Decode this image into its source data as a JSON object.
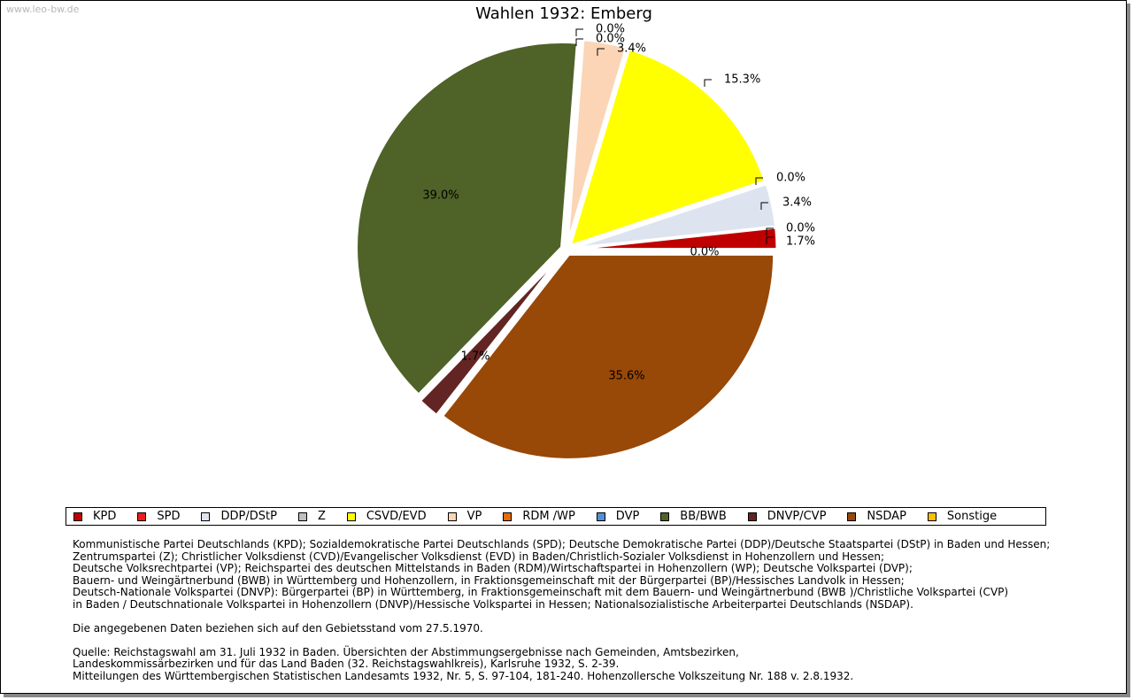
{
  "watermark": "www.leo-bw.de",
  "chart_data": {
    "type": "pie",
    "title": "Wahlen 1932: Emberg",
    "slices": [
      {
        "name": "KPD",
        "value": 1.7,
        "label": "1.7%",
        "color": "#c00000"
      },
      {
        "name": "SPD",
        "value": 0.0,
        "label": "0.0%",
        "color": "#ee1c1c"
      },
      {
        "name": "DDP/DStP",
        "value": 3.4,
        "label": "3.4%",
        "color": "#dde4f0"
      },
      {
        "name": "Z",
        "value": 0.0,
        "label": "0.0%",
        "color": "#c0c0c0"
      },
      {
        "name": "CSVD/EVD",
        "value": 15.3,
        "label": "15.3%",
        "color": "#ffff00"
      },
      {
        "name": "VP",
        "value": 3.4,
        "label": "3.4%",
        "color": "#fbd5b5"
      },
      {
        "name": "RDM /WP",
        "value": 0.0,
        "label": "0.0%",
        "color": "#e46c0a"
      },
      {
        "name": "DVP",
        "value": 0.0,
        "label": "0.0%",
        "color": "#558ed5"
      },
      {
        "name": "BB/BWB",
        "value": 39.0,
        "label": "39.0%",
        "color": "#4f6228"
      },
      {
        "name": "DNVP/CVP",
        "value": 1.7,
        "label": "1.7%",
        "color": "#632523"
      },
      {
        "name": "NSDAP",
        "value": 35.6,
        "label": "35.6%",
        "color": "#984807"
      },
      {
        "name": "Sonstige",
        "value": 0.0,
        "label": "0.0%",
        "color": "#ffc000"
      }
    ],
    "legend_position": "bottom"
  },
  "notes": {
    "parties": [
      "Kommunistische Partei Deutschlands (KPD); Sozialdemokratische Partei Deutschlands (SPD); Deutsche Demokratische Partei (DDP)/Deutsche Staatspartei (DStP) in Baden und Hessen;",
      "Zentrumspartei (Z); Christlicher Volksdienst (CVD)/Evangelischer Volksdienst (EVD) in Baden/Christlich-Sozialer Volksdienst in Hohenzollern und Hessen;",
      "Deutsche Volksrechtpartei (VP); Reichspartei des deutschen Mittelstands in Baden (RDM)/Wirtschaftspartei in Hohenzollern (WP); Deutsche Volkspartei (DVP);",
      "Bauern- und Weingärtnerbund (BWB) in Württemberg und Hohenzollern, in Fraktionsgemeinschaft mit der Bürgerpartei (BP)/Hessisches Landvolk in Hessen;",
      "Deutsch-Nationale Volkspartei (DNVP): Bürgerpartei (BP) in Württemberg, in Fraktionsgemeinschaft mit dem Bauern- und Weingärtnerbund (BWB )/Christliche Volkspartei (CVP)",
      "in Baden / Deutschnationale Volkspartei in Hohenzollern (DNVP)/Hessische Volkspartei in Hessen; Nationalsozialistische Arbeiterpartei Deutschlands (NSDAP)."
    ],
    "territory": "Die angegebenen Daten beziehen sich auf den Gebietsstand vom 27.5.1970.",
    "source": [
      "Quelle: Reichstagswahl am 31. Juli 1932 in Baden. Übersichten der Abstimmungsergebnisse nach Gemeinden, Amtsbezirken,",
      "Landeskommissärbezirken und für das Land Baden (32. Reichstagswahlkreis), Karlsruhe 1932, S. 2-39.",
      "Mitteilungen des Württembergischen Statistischen Landesamts 1932, Nr. 5, S. 97-104, 181-240. Hohenzollersche Volkszeitung Nr. 188 v. 2.8.1932."
    ]
  }
}
